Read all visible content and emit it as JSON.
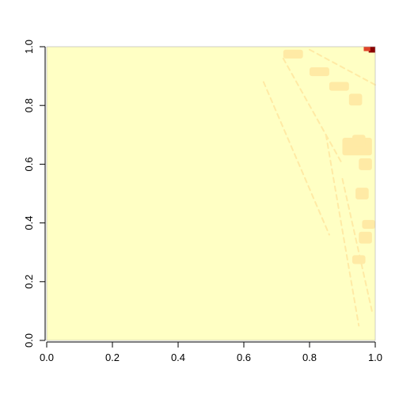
{
  "chart_data": {
    "type": "heatmap",
    "title": "",
    "xlabel": "",
    "ylabel": "",
    "xlim": [
      0,
      1
    ],
    "ylim": [
      0,
      1
    ],
    "x_ticks": [
      "0.0",
      "0.2",
      "0.4",
      "0.6",
      "0.8",
      "1.0"
    ],
    "y_ticks": [
      "0.0",
      "0.2",
      "0.4",
      "0.6",
      "0.8",
      "1.0"
    ],
    "x_tick_values": [
      0,
      0.2,
      0.4,
      0.6,
      0.8,
      1.0
    ],
    "y_tick_values": [
      0,
      0.2,
      0.4,
      0.6,
      0.8,
      1.0
    ],
    "colors": {
      "background": "#ffffc4",
      "light_patch": "#ffeaa5",
      "high_value": "#8b0000",
      "mid_value": "#e0442a",
      "axis": "#000000"
    },
    "regions": [
      {
        "level": "light",
        "x": [
          0.9,
          0.99
        ],
        "y": [
          0.63,
          0.69
        ]
      },
      {
        "level": "light",
        "x": [
          0.93,
          0.97
        ],
        "y": [
          0.66,
          0.7
        ]
      },
      {
        "level": "light",
        "x": [
          0.72,
          0.78
        ],
        "y": [
          0.96,
          0.99
        ]
      },
      {
        "level": "light",
        "x": [
          0.8,
          0.86
        ],
        "y": [
          0.9,
          0.93
        ]
      },
      {
        "level": "light",
        "x": [
          0.86,
          0.92
        ],
        "y": [
          0.85,
          0.88
        ]
      },
      {
        "level": "light",
        "x": [
          0.92,
          0.96
        ],
        "y": [
          0.8,
          0.84
        ]
      },
      {
        "level": "light",
        "x": [
          0.95,
          0.99
        ],
        "y": [
          0.58,
          0.62
        ]
      },
      {
        "level": "light",
        "x": [
          0.94,
          0.98
        ],
        "y": [
          0.48,
          0.52
        ]
      },
      {
        "level": "light",
        "x": [
          0.95,
          0.99
        ],
        "y": [
          0.33,
          0.37
        ]
      },
      {
        "level": "light",
        "x": [
          0.93,
          0.97
        ],
        "y": [
          0.26,
          0.29
        ]
      },
      {
        "level": "light",
        "x": [
          0.96,
          1.0
        ],
        "y": [
          0.38,
          0.41
        ]
      },
      {
        "level": "high",
        "x": [
          0.98,
          1.0
        ],
        "y": [
          0.98,
          1.0
        ]
      },
      {
        "level": "mid",
        "x": [
          0.965,
          0.985
        ],
        "y": [
          0.985,
          1.0
        ]
      }
    ],
    "streaks": [
      {
        "x1": 0.66,
        "y1": 0.88,
        "x2": 0.86,
        "y2": 0.36
      },
      {
        "x1": 0.72,
        "y1": 0.96,
        "x2": 0.9,
        "y2": 0.6
      },
      {
        "x1": 0.8,
        "y1": 0.99,
        "x2": 1.0,
        "y2": 0.87
      },
      {
        "x1": 0.85,
        "y1": 0.7,
        "x2": 0.95,
        "y2": 0.05
      },
      {
        "x1": 0.9,
        "y1": 0.55,
        "x2": 0.99,
        "y2": 0.1
      }
    ]
  }
}
